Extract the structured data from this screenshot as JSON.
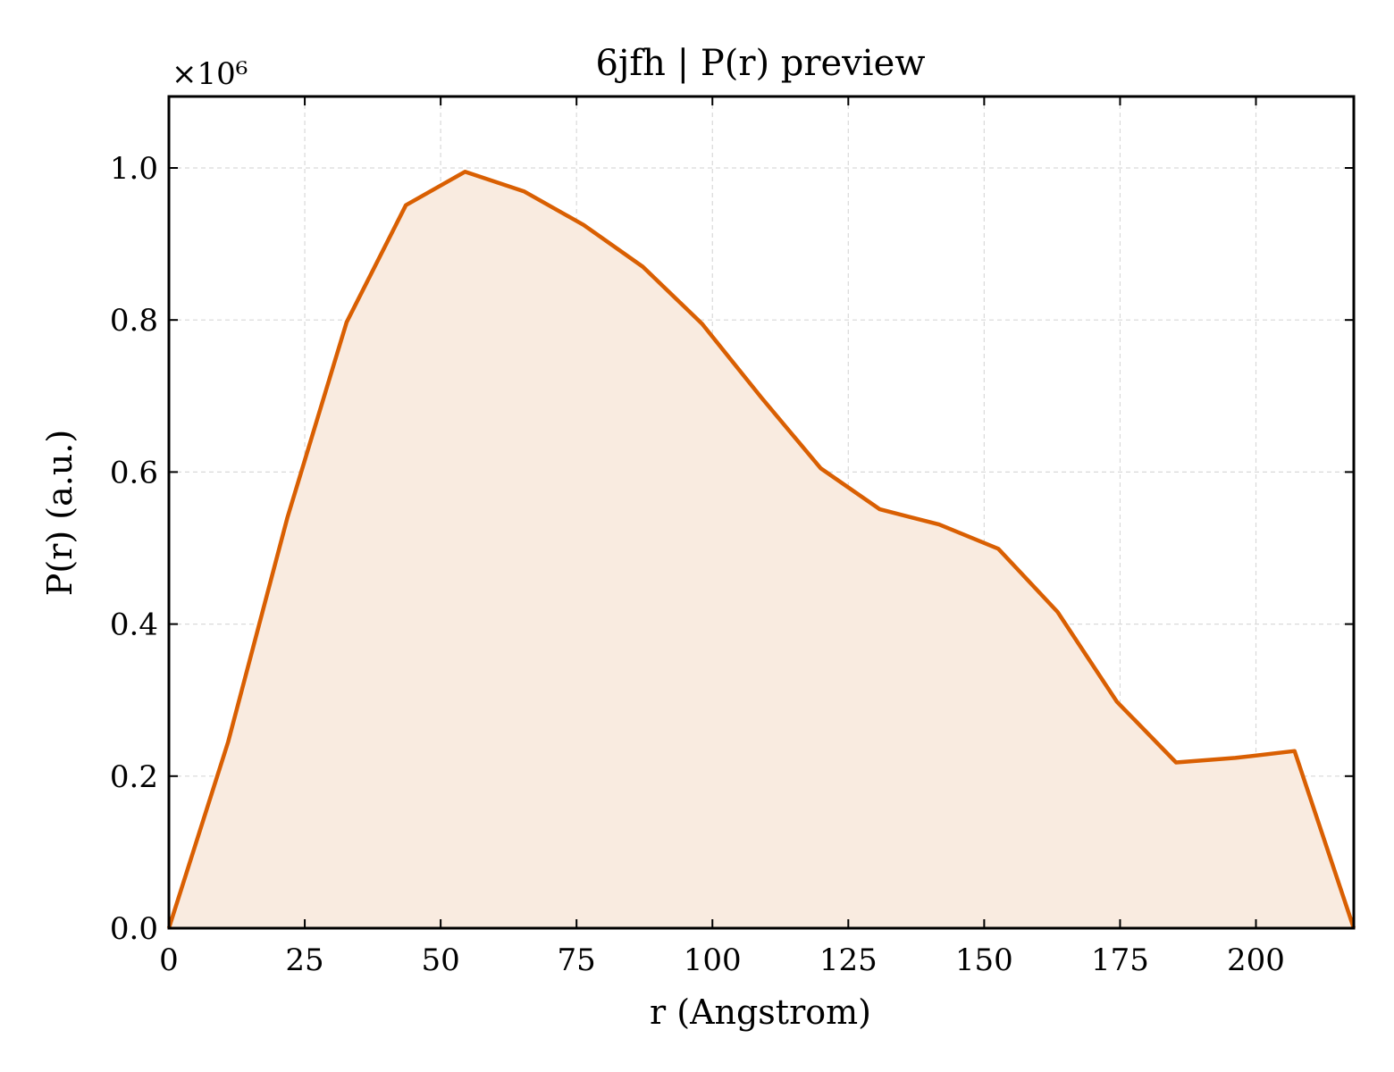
{
  "chart_data": {
    "type": "area",
    "title": "6jfh | P(r) preview",
    "xlabel": "r (Angstrom)",
    "ylabel": "P(r) (a.u.)",
    "y_multiplier_label": "×10⁶",
    "xlim": [
      0,
      218
    ],
    "ylim": [
      0,
      1.094
    ],
    "xticks": [
      0,
      25,
      50,
      75,
      100,
      125,
      150,
      175,
      200
    ],
    "yticks": [
      0.0,
      0.2,
      0.4,
      0.6,
      0.8,
      1.0
    ],
    "ytick_labels": [
      "0.0",
      "0.2",
      "0.4",
      "0.6",
      "0.8",
      "1.0"
    ],
    "grid": true,
    "legend": "none",
    "series": [
      {
        "color": "#d95f02",
        "fill_color": "#f9ebe0",
        "x": [
          0,
          10.9,
          21.8,
          32.7,
          43.6,
          54.5,
          65.4,
          76.3,
          87.2,
          98.1,
          109.0,
          119.9,
          130.8,
          141.7,
          152.6,
          163.5,
          174.4,
          185.3,
          196.2,
          207.1,
          218.0
        ],
        "y": [
          0.0,
          0.245,
          0.54,
          0.797,
          0.951,
          0.995,
          0.969,
          0.925,
          0.87,
          0.795,
          0.698,
          0.605,
          0.551,
          0.531,
          0.499,
          0.416,
          0.298,
          0.218,
          0.224,
          0.233,
          0.0
        ]
      }
    ]
  }
}
